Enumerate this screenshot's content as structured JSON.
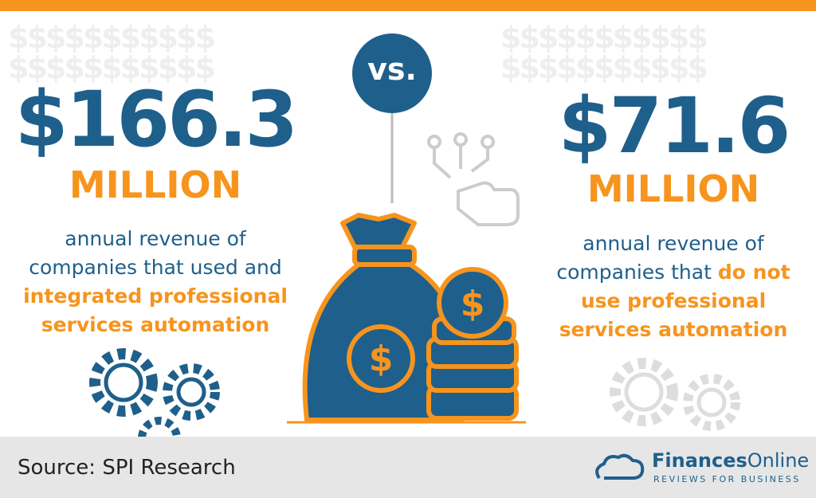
{
  "dollar_pattern": "$$$$$$$$$$$",
  "vs": "vs.",
  "left": {
    "amount": "$166.3",
    "unit": "MILLION",
    "lines": [
      [
        {
          "text": "annual revenue of"
        }
      ],
      [
        {
          "text": "companies that used and"
        }
      ],
      [
        {
          "text": "integrated professional",
          "highlight": true
        }
      ],
      [
        {
          "text": "services automation",
          "highlight": true
        }
      ]
    ]
  },
  "right": {
    "amount": "$71.6",
    "unit": "MILLION",
    "lines": [
      [
        {
          "text": "annual revenue of"
        }
      ],
      [
        {
          "text": "companies that"
        },
        {
          "text": "do not",
          "highlight": true
        }
      ],
      [
        {
          "text": "use professional",
          "highlight": true
        }
      ],
      [
        {
          "text": "services automation",
          "highlight": true
        }
      ]
    ]
  },
  "footer": {
    "source": "Source: SPI Research",
    "brand_bold": "Finances",
    "brand_light": "Online",
    "tagline": "REVIEWS FOR BUSINESS"
  }
}
